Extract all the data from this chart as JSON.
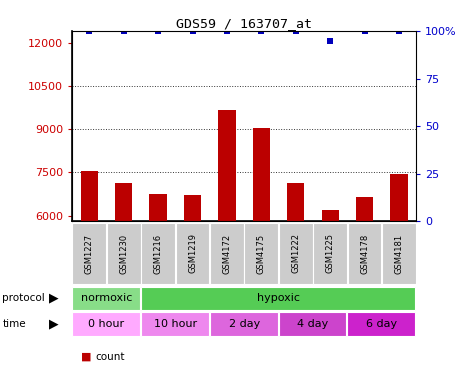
{
  "title": "GDS59 / 163707_at",
  "samples": [
    "GSM1227",
    "GSM1230",
    "GSM1216",
    "GSM1219",
    "GSM4172",
    "GSM4175",
    "GSM1222",
    "GSM1225",
    "GSM4178",
    "GSM4181"
  ],
  "counts": [
    7550,
    7150,
    6750,
    6700,
    9650,
    9050,
    7150,
    6200,
    6650,
    7450
  ],
  "percentile_ranks": [
    100,
    100,
    100,
    100,
    100,
    100,
    100,
    95,
    100,
    100
  ],
  "ylim_left": [
    5800,
    12400
  ],
  "ylim_right": [
    0,
    100
  ],
  "yticks_left": [
    6000,
    7500,
    9000,
    10500,
    12000
  ],
  "yticks_right": [
    0,
    25,
    50,
    75,
    100
  ],
  "bar_color": "#bb0000",
  "percentile_color": "#0000bb",
  "protocol_groups": [
    {
      "label": "normoxic",
      "start": 0,
      "end": 2,
      "color": "#88dd88"
    },
    {
      "label": "hypoxic",
      "start": 2,
      "end": 10,
      "color": "#55cc55"
    }
  ],
  "time_groups": [
    {
      "label": "0 hour",
      "start": 0,
      "end": 2,
      "color": "#ffaaff"
    },
    {
      "label": "10 hour",
      "start": 2,
      "end": 4,
      "color": "#ee88ee"
    },
    {
      "label": "2 day",
      "start": 4,
      "end": 6,
      "color": "#dd66dd"
    },
    {
      "label": "4 day",
      "start": 6,
      "end": 8,
      "color": "#cc44cc"
    },
    {
      "label": "6 day",
      "start": 8,
      "end": 10,
      "color": "#cc22cc"
    }
  ],
  "left_label_color": "#cc0000",
  "right_label_color": "#0000cc",
  "grid_color": "#333333",
  "bg_color": "#ffffff",
  "sample_bg_color": "#cccccc",
  "baseline": 5800
}
